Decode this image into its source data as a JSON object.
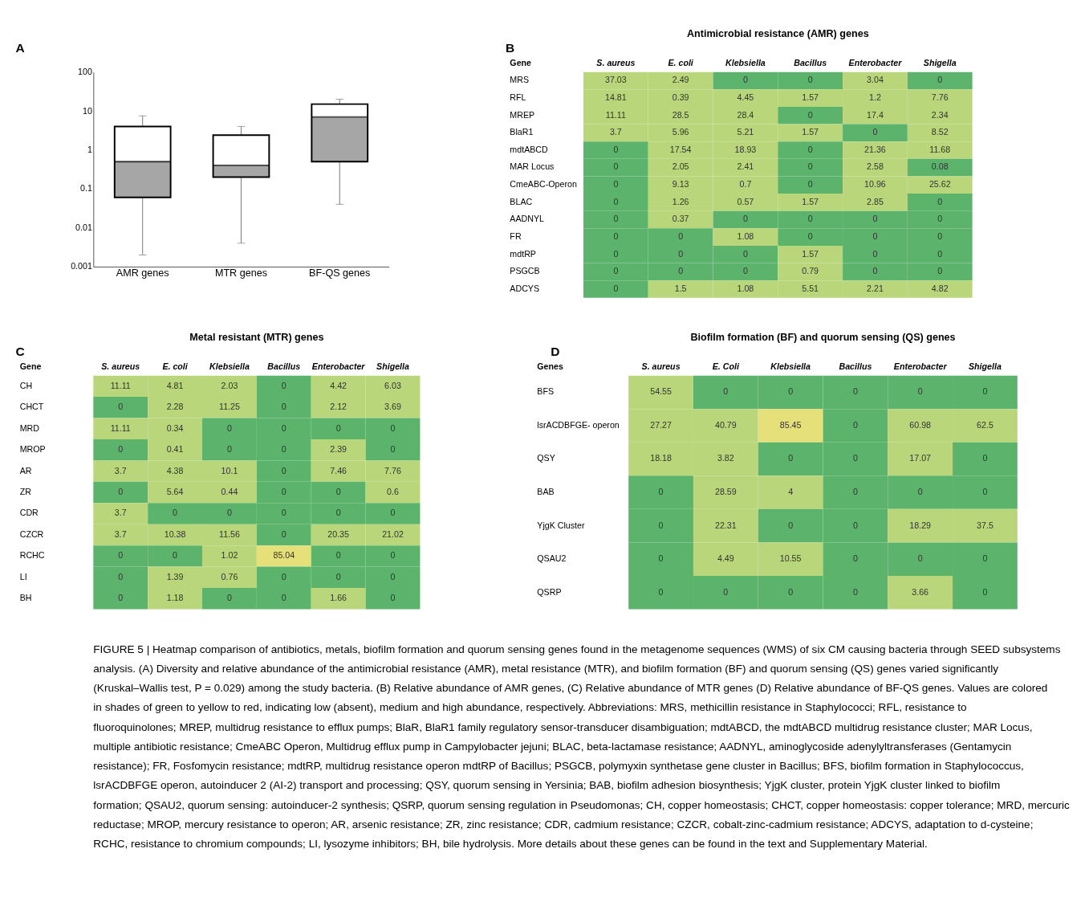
{
  "chart_data": [
    {
      "type": "box",
      "categories": [
        "AMR genes",
        "MTR genes",
        "BF-QS genes"
      ],
      "boxes": [
        {
          "low": 0.002,
          "q1": 0.06,
          "median": 0.5,
          "q3": 4,
          "high": 7.5
        },
        {
          "low": 0.004,
          "q1": 0.2,
          "median": 0.4,
          "q3": 2.4,
          "high": 4
        },
        {
          "low": 0.04,
          "q1": 0.5,
          "median": 7,
          "q3": 15,
          "high": 20
        }
      ],
      "log": true,
      "ylim": [
        0.001,
        100
      ],
      "yticks": [
        0.001,
        0.01,
        0.1,
        1,
        10,
        100
      ],
      "grid": false,
      "annotations": [
        "A"
      ]
    },
    {
      "type": "heatmap",
      "title": "Antimicrobial resistance (AMR) genes",
      "ylabel": "Gene",
      "categories": [
        "S. aureus",
        "E. coli",
        "Klebsiella",
        "Bacillus",
        "Enterobacter",
        "Shigella"
      ],
      "y_categories": [
        "MRS",
        "RFL",
        "MREP",
        "BlaR1",
        "mdtABCD",
        "MAR Locus",
        "CmeABC-Operon",
        "BLAC",
        "AADNYL",
        "FR",
        "mdtRP",
        "PSGCB",
        "ADCYS"
      ],
      "cells": [
        [
          37.03,
          2.49,
          0,
          0,
          3.04,
          0
        ],
        [
          14.81,
          0.39,
          4.45,
          1.57,
          1.2,
          7.76
        ],
        [
          11.11,
          28.5,
          28.4,
          0,
          17.4,
          2.34
        ],
        [
          3.7,
          5.96,
          5.21,
          1.57,
          0,
          8.52
        ],
        [
          0,
          17.54,
          18.93,
          0,
          21.36,
          11.68
        ],
        [
          0,
          2.05,
          2.41,
          0,
          2.58,
          0.08
        ],
        [
          0,
          9.13,
          0.7,
          0,
          10.96,
          25.62
        ],
        [
          0,
          1.26,
          0.57,
          1.57,
          2.85,
          0
        ],
        [
          0,
          0.37,
          0,
          0,
          0,
          0
        ],
        [
          0,
          0,
          1.08,
          0,
          0,
          0
        ],
        [
          0,
          0,
          0,
          1.57,
          0,
          0
        ],
        [
          0,
          0,
          0,
          0.79,
          0,
          0
        ],
        [
          0,
          1.5,
          1.08,
          5.51,
          2.21,
          4.82
        ]
      ],
      "data_labels": true,
      "annotations": [
        "B"
      ]
    },
    {
      "type": "heatmap",
      "title": "Metal resistant (MTR) genes",
      "ylabel": "Gene",
      "categories": [
        "S. aureus",
        "E. coli",
        "Klebsiella",
        "Bacillus",
        "Enterobacter",
        "Shigella"
      ],
      "y_categories": [
        "CH",
        "CHCT",
        "MRD",
        "MROP",
        "AR",
        "ZR",
        "CDR",
        "CZCR",
        "RCHC",
        "LI",
        "BH"
      ],
      "cells": [
        [
          11.11,
          4.81,
          2.03,
          0,
          4.42,
          6.03
        ],
        [
          0,
          2.28,
          11.25,
          0,
          2.12,
          3.69
        ],
        [
          11.11,
          0.34,
          0,
          0,
          0,
          0
        ],
        [
          0,
          0.41,
          0,
          0,
          2.39,
          0
        ],
        [
          3.7,
          4.38,
          10.1,
          0,
          7.46,
          7.76
        ],
        [
          0,
          5.64,
          0.44,
          0,
          0,
          0.6
        ],
        [
          3.7,
          0,
          0,
          0,
          0,
          0
        ],
        [
          3.7,
          10.38,
          11.56,
          0,
          20.35,
          21.02
        ],
        [
          0,
          0,
          1.02,
          85.04,
          0,
          0
        ],
        [
          0,
          1.39,
          0.76,
          0,
          0,
          0
        ],
        [
          0,
          1.18,
          0,
          0,
          1.66,
          0
        ]
      ],
      "data_labels": true,
      "annotations": [
        "C"
      ]
    },
    {
      "type": "heatmap",
      "title": "Biofilm formation (BF) and quorum sensing (QS) genes",
      "ylabel": "Genes",
      "categories": [
        "S. aureus",
        "E. Coli",
        "Klebsiella",
        "Bacillus",
        "Enterobacter",
        "Shigella"
      ],
      "y_categories": [
        "BFS",
        "lsrACDBFGE- operon",
        "QSY",
        "BAB",
        "YjgK Cluster",
        "QSAU2",
        "QSRP"
      ],
      "cells": [
        [
          54.55,
          0,
          0,
          0,
          0,
          0
        ],
        [
          27.27,
          40.79,
          85.45,
          0,
          60.98,
          62.5
        ],
        [
          18.18,
          3.82,
          0,
          0,
          17.07,
          0
        ],
        [
          0,
          28.59,
          4,
          0,
          0,
          0
        ],
        [
          0,
          22.31,
          0,
          0,
          18.29,
          37.5
        ],
        [
          0,
          4.49,
          10.55,
          0,
          0,
          0
        ],
        [
          0,
          0,
          0,
          0,
          3.66,
          0
        ]
      ],
      "data_labels": true,
      "annotations": [
        "D",
        "FIGURE 5 | Heatmap comparison of antibiotics, metals, biofilm formation and quorum sensing genes found in the metagenome sequences (WMS) of six CM causing bacteria through SEED subsystems analysis. (A) Diversity and relative abundance of the antimicrobial resistance (AMR), metal resistance (MTR), and biofilm formation (BF) and quorum sensing (QS) genes varied significantly (Kruskal–Wallis test, P = 0.029) among the study bacteria. (B) Relative abundance of AMR genes, (C) Relative abundance of MTR genes (D) Relative abundance of BF-QS genes. Values are colored in shades of green to yellow to red, indicating low (absent), medium and high abundance, respectively. Abbreviations: MRS, methicillin resistance in Staphylococci; RFL, resistance to fluoroquinolones; MREP, multidrug resistance to efflux pumps; BlaR, BlaR1 family regulatory sensor-transducer disambiguation; mdtABCD, the mdtABCD multidrug resistance cluster; MAR Locus, multiple antibiotic resistance; CmeABC Operon, Multidrug efflux pump in Campylobacter jejuni; BLAC, beta-lactamase resistance; AADNYL, aminoglycoside adenylyltransferases (Gentamycin resistance); FR, Fosfomycin resistance; mdtRP, multidrug resistance operon mdtRP of Bacillus; PSGCB, polymyxin synthetase gene cluster in Bacillus; BFS, biofilm formation in Staphylococcus, lsrACDBFGE operon, autoinducer 2 (AI-2) transport and processing; QSY, quorum sensing in Yersinia; BAB, biofilm adhesion biosynthesis; YjgK cluster, protein YjgK cluster linked to biofilm formation; QSAU2, quorum sensing: autoinducer-2 synthesis; QSRP, quorum sensing regulation in Pseudomonas; CH, copper homeostasis; CHCT, copper homeostasis: copper tolerance; MRD, mercuric reductase; MROP, mercury resistance to operon; AR, arsenic resistance; ZR, zinc resistance; CDR, cadmium resistance; CZCR, cobalt-zinc-cadmium resistance; ADCYS, adaptation to d-cysteine; RCHC, resistance to chromium compounds; LI, lysozyme inhibitors; BH, bile hydrolysis. More details about these genes can be found in the text and Supplementary Material."
      ]
    }
  ]
}
